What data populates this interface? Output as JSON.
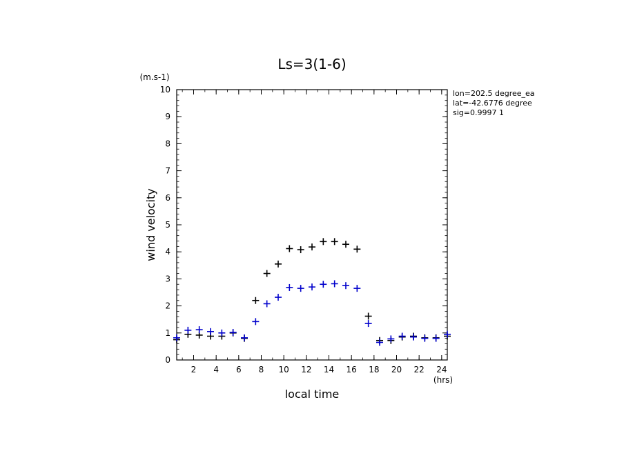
{
  "chart_data": {
    "type": "scatter",
    "title": "Ls=3(1-6)",
    "xlabel": "local time",
    "ylabel": "wind velocity",
    "x_unit": "(hrs)",
    "y_unit": "(m.s-1)",
    "xlim": [
      0.5,
      24.5
    ],
    "ylim": [
      0,
      10
    ],
    "x_ticks": [
      2,
      4,
      6,
      8,
      10,
      12,
      14,
      16,
      18,
      20,
      22,
      24
    ],
    "y_ticks": [
      0,
      1,
      2,
      3,
      4,
      5,
      6,
      7,
      8,
      9,
      10
    ],
    "info_lines": [
      "lon=202.5 degree_ea",
      "lat=-42.6776 degree",
      "sig=0.9997 1"
    ],
    "grid": false,
    "legend": "none",
    "series": [
      {
        "color": "#000000",
        "marker": "+",
        "x": [
          0.5,
          1.5,
          2.5,
          3.5,
          4.5,
          5.5,
          6.5,
          7.5,
          8.5,
          9.5,
          10.5,
          11.5,
          12.5,
          13.5,
          14.5,
          15.5,
          16.5,
          17.5,
          18.5,
          19.5,
          20.5,
          21.5,
          22.5,
          23.5,
          24.5
        ],
        "y": [
          0.75,
          0.95,
          0.92,
          0.88,
          0.88,
          1.0,
          0.8,
          2.2,
          3.2,
          3.55,
          4.12,
          4.08,
          4.18,
          4.38,
          4.38,
          4.28,
          4.1,
          1.62,
          0.72,
          0.72,
          0.85,
          0.88,
          0.82,
          0.82,
          0.88
        ]
      },
      {
        "color": "#0000cc",
        "marker": "+",
        "x": [
          0.5,
          1.5,
          2.5,
          3.5,
          4.5,
          5.5,
          6.5,
          7.5,
          8.5,
          9.5,
          10.5,
          11.5,
          12.5,
          13.5,
          14.5,
          15.5,
          16.5,
          17.5,
          18.5,
          19.5,
          20.5,
          21.5,
          22.5,
          23.5,
          24.5
        ],
        "y": [
          0.82,
          1.1,
          1.12,
          1.05,
          1.0,
          1.02,
          0.82,
          1.42,
          2.08,
          2.32,
          2.68,
          2.65,
          2.7,
          2.8,
          2.82,
          2.75,
          2.65,
          1.35,
          0.65,
          0.78,
          0.88,
          0.85,
          0.8,
          0.8,
          0.95
        ]
      }
    ]
  }
}
